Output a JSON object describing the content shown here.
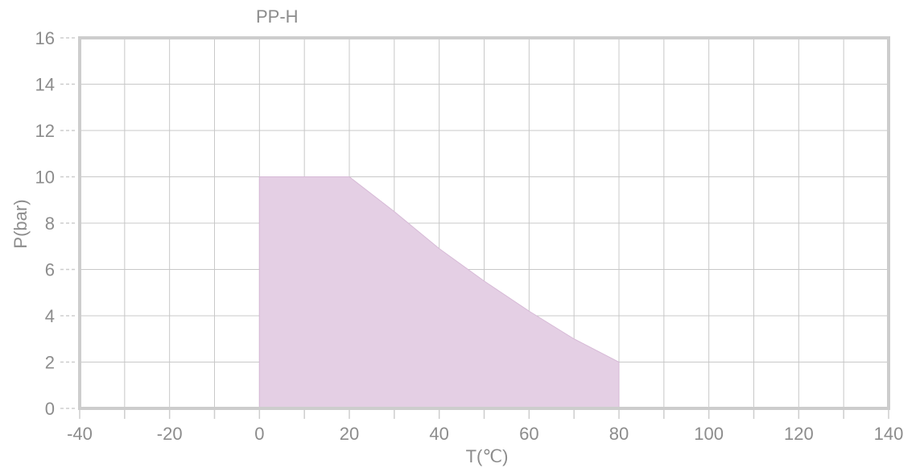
{
  "chart_data": {
    "type": "area",
    "title": "PP-H",
    "xlabel": "T(℃)",
    "ylabel": "P(bar)",
    "xlim": [
      -40,
      140
    ],
    "ylim": [
      0,
      16
    ],
    "x_ticks": [
      -40,
      -20,
      0,
      20,
      40,
      60,
      80,
      100,
      120,
      140
    ],
    "y_ticks": [
      0,
      2,
      4,
      6,
      8,
      10,
      12,
      14,
      16
    ],
    "grid": true,
    "x_grid_step": 10,
    "series": [
      {
        "x": [
          0,
          20,
          30,
          40,
          50,
          60,
          70,
          80
        ],
        "y": [
          10,
          10,
          8.5,
          6.9,
          5.5,
          4.2,
          3.0,
          2.0
        ]
      }
    ],
    "colors": {
      "fill": "#e4cfe4",
      "fill_edge": "#d6b9d6",
      "grid": "#c8c8c8",
      "frame": "#cdcdcd",
      "text": "#8c8c8c"
    }
  }
}
